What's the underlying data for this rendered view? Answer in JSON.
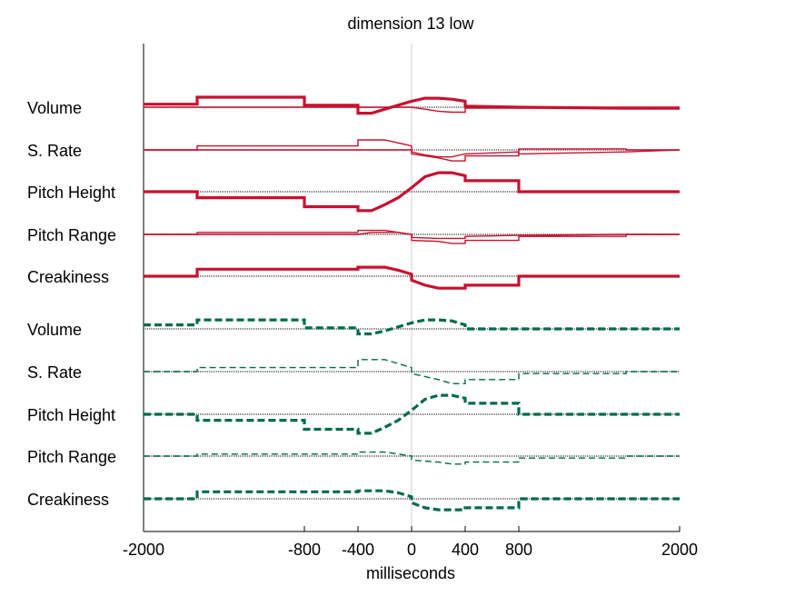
{
  "chart_data": {
    "type": "line",
    "title": "dimension 13 low",
    "xlabel": "milliseconds",
    "ylabel": "",
    "xlim": [
      -2000,
      2000
    ],
    "xticks": [
      -2000,
      -800,
      -400,
      0,
      400,
      800,
      2000
    ],
    "xtick_labels": [
      "-2000",
      "-800",
      "-400",
      "0",
      "400",
      "800",
      "2000"
    ],
    "zero_line_at": 0,
    "legend": "none",
    "grid": false,
    "color_top": "#c8102e",
    "color_bottom": "#006a4e",
    "groups": [
      {
        "style": "solid",
        "rows": [
          {
            "label": "Volume",
            "series": [
              {
                "weight": "thick",
                "x": [
                  -2000,
                  -1600,
                  -1600,
                  -800,
                  -800,
                  -400,
                  -400,
                  -300,
                  -200,
                  -100,
                  0,
                  100,
                  200,
                  300,
                  400,
                  400,
                  800,
                  1600,
                  2000
                ],
                "y": [
                  0.15,
                  0.15,
                  0.5,
                  0.5,
                  0.1,
                  0.1,
                  -0.3,
                  -0.3,
                  -0.1,
                  0.1,
                  0.3,
                  0.45,
                  0.45,
                  0.4,
                  0.3,
                  0.05,
                  0,
                  -0.05,
                  -0.05
                ]
              },
              {
                "weight": "thin",
                "x": [
                  -2000,
                  0,
                  100,
                  200,
                  300,
                  400,
                  400,
                  800,
                  1600,
                  2000
                ],
                "y": [
                  0,
                  0,
                  -0.1,
                  -0.2,
                  -0.25,
                  -0.25,
                  -0.05,
                  -0.05,
                  0,
                  0
                ]
              }
            ]
          },
          {
            "label": "S. Rate",
            "series": [
              {
                "weight": "thin",
                "x": [
                  -2000,
                  -1600,
                  -1600,
                  -400,
                  -400,
                  -200,
                  -100,
                  0,
                  0,
                  100,
                  200,
                  300,
                  400,
                  400,
                  800,
                  800,
                  1600,
                  1600,
                  2000
                ],
                "y": [
                  0,
                  0,
                  0.2,
                  0.2,
                  0.5,
                  0.5,
                  0.35,
                  0.2,
                  -0.1,
                  -0.25,
                  -0.35,
                  -0.35,
                  -0.2,
                  -0.2,
                  -0.1,
                  -0.2,
                  -0.1,
                  -0.1,
                  0
                ]
              },
              {
                "weight": "thin",
                "x": [
                  -2000,
                  0,
                  0,
                  200,
                  300,
                  400,
                  400,
                  800,
                  800,
                  1600,
                  1600,
                  2000
                ],
                "y": [
                  0,
                  0,
                  -0.2,
                  -0.4,
                  -0.55,
                  -0.55,
                  -0.3,
                  -0.3,
                  0.05,
                  0.05,
                  0,
                  0
                ]
              }
            ]
          },
          {
            "label": "Pitch Height",
            "series": [
              {
                "weight": "thick",
                "x": [
                  -2000,
                  -1600,
                  -1600,
                  -800,
                  -800,
                  -400,
                  -400,
                  -300,
                  -200,
                  -100,
                  0,
                  100,
                  200,
                  300,
                  400,
                  400,
                  800,
                  800,
                  2000
                ],
                "y": [
                  0,
                  0,
                  -0.3,
                  -0.3,
                  -0.75,
                  -0.75,
                  -0.95,
                  -0.95,
                  -0.65,
                  -0.3,
                  0.2,
                  0.75,
                  0.95,
                  0.95,
                  0.8,
                  0.55,
                  0.55,
                  0,
                  0
                ]
              }
            ]
          },
          {
            "label": "Pitch Range",
            "series": [
              {
                "weight": "thin",
                "x": [
                  -2000,
                  -1600,
                  -1600,
                  -400,
                  -400,
                  -200,
                  -100,
                  0,
                  0,
                  200,
                  300,
                  400,
                  400,
                  800,
                  800,
                  1600,
                  1600,
                  2000
                ],
                "y": [
                  0,
                  0,
                  0.1,
                  0.1,
                  0.2,
                  0.2,
                  0.1,
                  0,
                  -0.3,
                  -0.35,
                  -0.45,
                  -0.45,
                  -0.3,
                  -0.3,
                  -0.1,
                  -0.1,
                  0,
                  0
                ]
              },
              {
                "weight": "thin",
                "x": [
                  -2000,
                  -400,
                  -300,
                  -100,
                  0,
                  0,
                  200,
                  400,
                  400,
                  800,
                  1600,
                  2000
                ],
                "y": [
                  0,
                  0,
                  0.1,
                  0.1,
                  0,
                  -0.15,
                  -0.2,
                  -0.2,
                  -0.1,
                  -0.05,
                  0,
                  0
                ]
              }
            ]
          },
          {
            "label": "Creakiness",
            "series": [
              {
                "weight": "thick",
                "x": [
                  -2000,
                  -1600,
                  -1600,
                  -400,
                  -400,
                  -200,
                  -100,
                  0,
                  0,
                  100,
                  200,
                  300,
                  400,
                  400,
                  800,
                  800,
                  2000
                ],
                "y": [
                  0,
                  0,
                  0.35,
                  0.35,
                  0.45,
                  0.45,
                  0.3,
                  0.1,
                  -0.2,
                  -0.45,
                  -0.6,
                  -0.6,
                  -0.6,
                  -0.45,
                  -0.45,
                  0,
                  0
                ]
              }
            ]
          }
        ]
      },
      {
        "style": "dashed",
        "rows": [
          {
            "label": "Volume",
            "series": [
              {
                "weight": "thick",
                "x": [
                  -2000,
                  -1600,
                  -1600,
                  -800,
                  -800,
                  -400,
                  -400,
                  -300,
                  -200,
                  -100,
                  0,
                  100,
                  200,
                  300,
                  400,
                  400,
                  800,
                  1600,
                  2000
                ],
                "y": [
                  0.2,
                  0.2,
                  0.45,
                  0.45,
                  0.05,
                  0.05,
                  -0.25,
                  -0.25,
                  -0.1,
                  0.1,
                  0.3,
                  0.45,
                  0.45,
                  0.4,
                  0.2,
                  0,
                  0,
                  0,
                  0
                ]
              }
            ]
          },
          {
            "label": "S. Rate",
            "series": [
              {
                "weight": "thin",
                "x": [
                  -2000,
                  -1600,
                  -1600,
                  -400,
                  -400,
                  -200,
                  -100,
                  0,
                  0,
                  200,
                  300,
                  400,
                  400,
                  800,
                  800,
                  1600,
                  1600,
                  2000
                ],
                "y": [
                  0,
                  0,
                  0.2,
                  0.2,
                  0.6,
                  0.6,
                  0.4,
                  0.2,
                  -0.1,
                  -0.4,
                  -0.6,
                  -0.6,
                  -0.4,
                  -0.4,
                  -0.1,
                  -0.1,
                  0,
                  0
                ]
              }
            ]
          },
          {
            "label": "Pitch Height",
            "series": [
              {
                "weight": "thick",
                "x": [
                  -2000,
                  -1600,
                  -1600,
                  -800,
                  -800,
                  -400,
                  -400,
                  -300,
                  -200,
                  -100,
                  0,
                  100,
                  200,
                  300,
                  400,
                  400,
                  800,
                  800,
                  2000
                ],
                "y": [
                  0,
                  0,
                  -0.3,
                  -0.3,
                  -0.75,
                  -0.75,
                  -0.95,
                  -0.95,
                  -0.65,
                  -0.3,
                  0.2,
                  0.75,
                  0.95,
                  0.95,
                  0.8,
                  0.55,
                  0.55,
                  0,
                  0
                ]
              }
            ]
          },
          {
            "label": "Pitch Range",
            "series": [
              {
                "weight": "thin",
                "x": [
                  -2000,
                  -1600,
                  -1600,
                  -400,
                  -400,
                  -200,
                  -100,
                  0,
                  0,
                  200,
                  300,
                  400,
                  400,
                  800,
                  800,
                  1600,
                  1600,
                  2000
                ],
                "y": [
                  0,
                  0,
                  0.1,
                  0.1,
                  0.2,
                  0.2,
                  0.1,
                  0,
                  -0.2,
                  -0.3,
                  -0.4,
                  -0.4,
                  -0.3,
                  -0.3,
                  -0.1,
                  -0.1,
                  0,
                  0
                ]
              }
            ]
          },
          {
            "label": "Creakiness",
            "series": [
              {
                "weight": "thick",
                "x": [
                  -2000,
                  -1600,
                  -1600,
                  -400,
                  -400,
                  -200,
                  -100,
                  0,
                  0,
                  100,
                  200,
                  300,
                  400,
                  400,
                  800,
                  800,
                  2000
                ],
                "y": [
                  0,
                  0,
                  0.35,
                  0.35,
                  0.4,
                  0.4,
                  0.3,
                  0.1,
                  -0.2,
                  -0.45,
                  -0.55,
                  -0.55,
                  -0.55,
                  -0.45,
                  -0.45,
                  0,
                  0
                ]
              }
            ]
          }
        ]
      }
    ]
  }
}
